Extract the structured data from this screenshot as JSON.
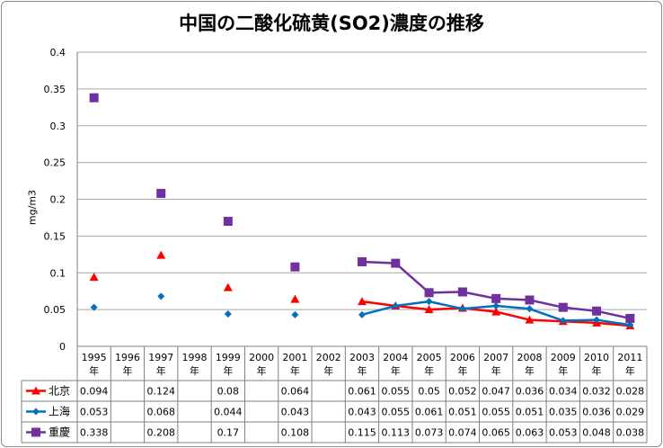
{
  "chart_data": {
    "type": "line",
    "title": "中国の二酸化硫黄(SO2)濃度の推移",
    "xlabel": "",
    "ylabel": "mg/m3",
    "ylim": [
      0,
      0.4
    ],
    "yticks": [
      "0",
      "0.05",
      "0.1",
      "0.15",
      "0.2",
      "0.25",
      "0.3",
      "0.35",
      "0.4"
    ],
    "grid": true,
    "legend": "data-table-left",
    "categories": [
      "1995年",
      "1996年",
      "1997年",
      "1998年",
      "1999年",
      "2000年",
      "2001年",
      "2002年",
      "2003年",
      "2004年",
      "2005年",
      "2006年",
      "2007年",
      "2008年",
      "2009年",
      "2010年",
      "2011年"
    ],
    "series": [
      {
        "name": "北京",
        "color": "#ff0000",
        "marker": "triangle",
        "values": [
          0.094,
          null,
          0.124,
          null,
          0.08,
          null,
          0.064,
          null,
          0.061,
          0.055,
          0.05,
          0.052,
          0.047,
          0.036,
          0.034,
          0.032,
          0.028
        ],
        "labels": [
          "0.094",
          "",
          "0.124",
          "",
          "0.08",
          "",
          "0.064",
          "",
          "0.061",
          "0.055",
          "0.05",
          "0.052",
          "0.047",
          "0.036",
          "0.034",
          "0.032",
          "0.028"
        ]
      },
      {
        "name": "上海",
        "color": "#0070c0",
        "marker": "diamond",
        "values": [
          0.053,
          null,
          0.068,
          null,
          0.044,
          null,
          0.043,
          null,
          0.043,
          0.055,
          0.061,
          0.051,
          0.055,
          0.051,
          0.035,
          0.036,
          0.029
        ],
        "labels": [
          "0.053",
          "",
          "0.068",
          "",
          "0.044",
          "",
          "0.043",
          "",
          "0.043",
          "0.055",
          "0.061",
          "0.051",
          "0.055",
          "0.051",
          "0.035",
          "0.036",
          "0.029"
        ]
      },
      {
        "name": "重慶",
        "color": "#7030a0",
        "marker": "square",
        "values": [
          0.338,
          null,
          0.208,
          null,
          0.17,
          null,
          0.108,
          null,
          0.115,
          0.113,
          0.073,
          0.074,
          0.065,
          0.063,
          0.053,
          0.048,
          0.038
        ],
        "labels": [
          "0.338",
          "",
          "0.208",
          "",
          "0.17",
          "",
          "0.108",
          "",
          "0.115",
          "0.113",
          "0.073",
          "0.074",
          "0.065",
          "0.063",
          "0.053",
          "0.048",
          "0.038"
        ]
      }
    ]
  }
}
